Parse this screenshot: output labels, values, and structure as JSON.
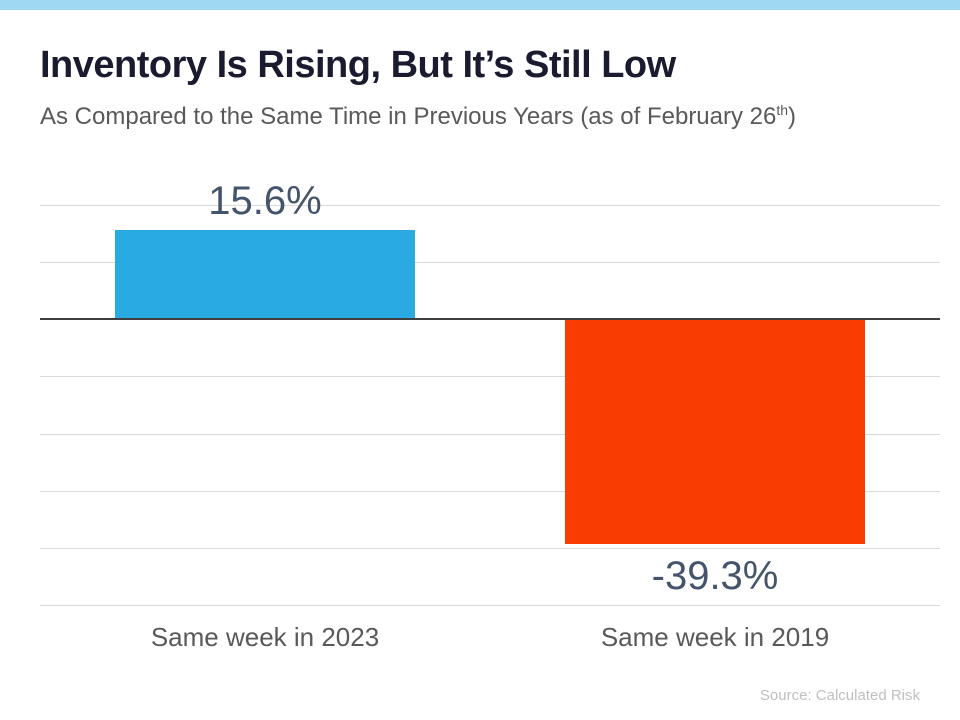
{
  "page": {
    "accent_color": "#9fd8f1",
    "subtitle_prefix": "As Compared to the Same Time in Previous Years (as of February 26",
    "subtitle_superscript": "th",
    "subtitle_suffix": ")",
    "source": "Source: Calculated Risk"
  },
  "chart_data": {
    "type": "bar",
    "title": "Inventory Is Rising, But It’s Still Low",
    "subtitle": "As Compared to the Same Time in Previous Years (as of February 26th)",
    "categories": [
      "Same week in 2023",
      "Same week in 2019"
    ],
    "values": [
      15.6,
      -39.3
    ],
    "data_labels": [
      "15.6%",
      "-39.3%"
    ],
    "bar_colors": [
      "#29abe2",
      "#f93c02"
    ],
    "data_label_color": "#44546a",
    "category_label_color": "#595959",
    "zero_line_color": "#3f3f3f",
    "gridline_color": "#d9d9d9",
    "ylim": [
      -50,
      20
    ],
    "gridline_step": 10,
    "grid": true,
    "legend": false,
    "xlabel": "",
    "ylabel": "",
    "source": "Source: Calculated Risk"
  }
}
